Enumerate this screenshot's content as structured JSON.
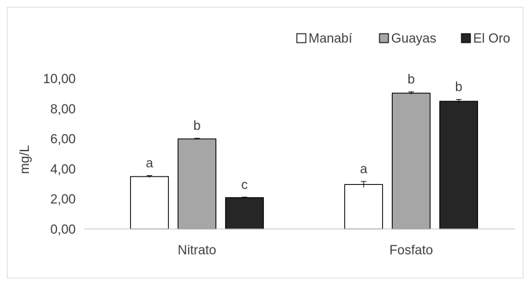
{
  "chart_data": {
    "type": "bar",
    "title": "",
    "xlabel": "",
    "ylabel": "mg/L",
    "ylim": [
      0,
      10
    ],
    "yticks": [
      "0,00",
      "2,00",
      "4,00",
      "6,00",
      "8,00",
      "10,00"
    ],
    "categories": [
      "Nitrato",
      "Fosfato"
    ],
    "legend_position": "top-right",
    "grid": false,
    "series": [
      {
        "name": "Manabí",
        "color": "#ffffff",
        "values": [
          3.48,
          2.95
        ],
        "errors": [
          0.06,
          0.2
        ],
        "labels": [
          "a",
          "a"
        ]
      },
      {
        "name": "Guayas",
        "color": "#a6a6a6",
        "values": [
          5.98,
          9.02
        ],
        "errors": [
          0.04,
          0.08
        ],
        "labels": [
          "b",
          "b"
        ]
      },
      {
        "name": "El Oro",
        "color": "#262626",
        "values": [
          2.08,
          8.48
        ],
        "errors": [
          0.03,
          0.12
        ],
        "labels": [
          "c",
          "b"
        ]
      }
    ]
  }
}
